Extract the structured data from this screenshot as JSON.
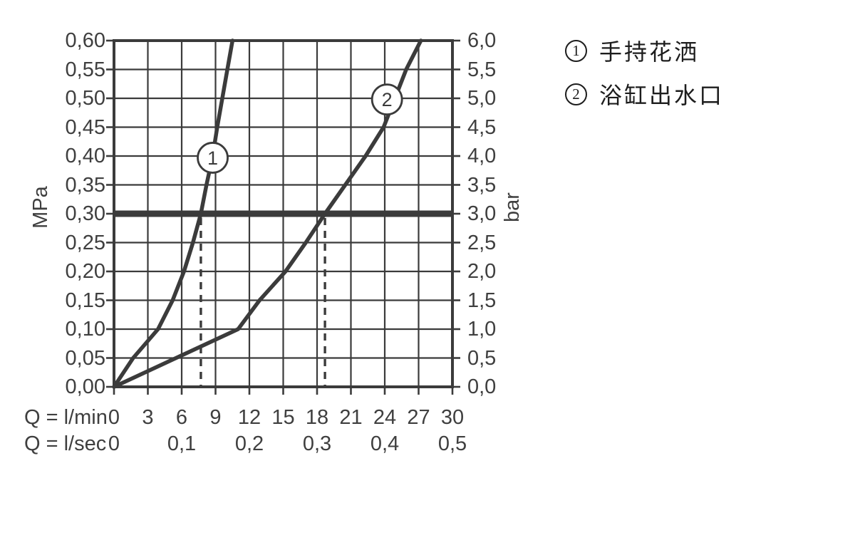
{
  "colors": {
    "line": "#3b3b3b",
    "background": "#ffffff",
    "badge_fill": "#ffffff"
  },
  "chart_data": {
    "type": "line",
    "description": "Flow rate vs pressure diagram with two curves",
    "x_axis": {
      "label_lmin": "Q = l/min",
      "label_lsec": "Q = l/sec",
      "max_lmin": 30,
      "lmin_ticks": [
        "0",
        "3",
        "6",
        "9",
        "12",
        "15",
        "18",
        "21",
        "24",
        "27",
        "30"
      ],
      "lsec_ticks": [
        {
          "label": "0",
          "q": 0
        },
        {
          "label": "0,1",
          "q": 6
        },
        {
          "label": "0,2",
          "q": 12
        },
        {
          "label": "0,3",
          "q": 18
        },
        {
          "label": "0,4",
          "q": 24
        },
        {
          "label": "0,5",
          "q": 30
        }
      ]
    },
    "y_left": {
      "label": "MPa",
      "max": 0.6,
      "ticks": [
        "0,60",
        "0,55",
        "0,50",
        "0,45",
        "0,40",
        "0,35",
        "0,30",
        "0,25",
        "0,20",
        "0,15",
        "0,10",
        "0,05",
        "0,00"
      ]
    },
    "y_right": {
      "label": "bar",
      "max": 6.0,
      "ticks": [
        "6,0",
        "5,5",
        "5,0",
        "4,5",
        "4,0",
        "3,5",
        "3,0",
        "2,5",
        "2,0",
        "1,5",
        "1,0",
        "0,5",
        "0,0"
      ]
    },
    "grid": {
      "x_step_lmin": 3,
      "y_step_mpa": 0.05
    },
    "reference_line": {
      "value_mpa": 0.3,
      "value_bar": 3.0
    },
    "guide_lines_lmin": [
      7.7,
      18.7
    ],
    "series": [
      {
        "id": "1",
        "badge": "1",
        "name": "手持花洒",
        "badge_at": [
          8.75,
          0.397
        ],
        "points": [
          [
            0,
            0
          ],
          [
            1.7,
            0.05
          ],
          [
            3.9,
            0.1
          ],
          [
            5.2,
            0.15
          ],
          [
            6.2,
            0.2
          ],
          [
            7.0,
            0.25
          ],
          [
            7.7,
            0.3
          ],
          [
            8.2,
            0.35
          ],
          [
            8.75,
            0.4
          ],
          [
            9.15,
            0.45
          ],
          [
            9.6,
            0.5
          ],
          [
            10.05,
            0.55
          ],
          [
            10.5,
            0.6
          ]
        ]
      },
      {
        "id": "2",
        "badge": "2",
        "name": "浴缸出水口",
        "badge_at": [
          24.2,
          0.498
        ],
        "points": [
          [
            0,
            0
          ],
          [
            5.5,
            0.05
          ],
          [
            11.0,
            0.1
          ],
          [
            12.9,
            0.15
          ],
          [
            15.2,
            0.2
          ],
          [
            17.0,
            0.25
          ],
          [
            18.7,
            0.3
          ],
          [
            20.5,
            0.35
          ],
          [
            22.3,
            0.4
          ],
          [
            23.9,
            0.45
          ],
          [
            24.9,
            0.5
          ],
          [
            25.9,
            0.55
          ],
          [
            27.2,
            0.6
          ]
        ]
      }
    ]
  },
  "legend": {
    "items": [
      {
        "num": "1",
        "label": "手持花洒"
      },
      {
        "num": "2",
        "label": "浴缸出水口"
      }
    ]
  }
}
